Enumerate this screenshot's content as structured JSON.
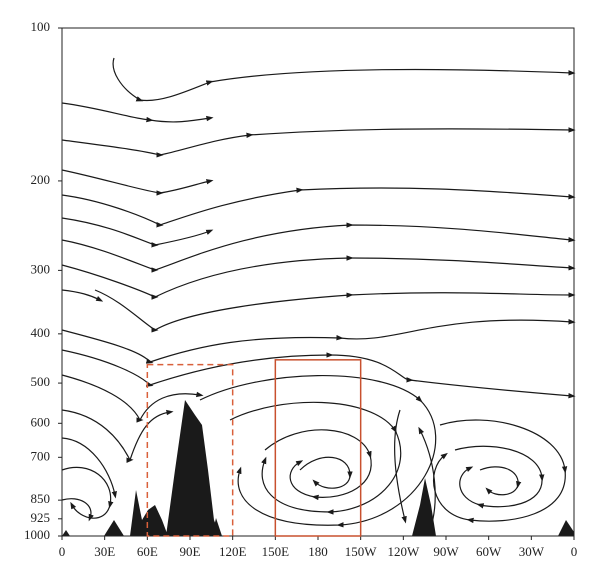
{
  "chart_data": {
    "type": "streamline",
    "xlim": [
      0,
      360
    ],
    "xticks": [
      0,
      {
        "value": 30,
        "label": "30E"
      },
      {
        "value": 60,
        "label": "60E"
      },
      {
        "value": 90,
        "label": "90E"
      },
      {
        "value": 120,
        "label": "120E"
      },
      {
        "value": 150,
        "label": "150E"
      },
      180,
      {
        "value": 210,
        "label": "150W"
      },
      {
        "value": 240,
        "label": "120W"
      },
      {
        "value": 270,
        "label": "90W"
      },
      {
        "value": 300,
        "label": "60W"
      },
      {
        "value": 330,
        "label": "30W"
      },
      {
        "value": 360,
        "label": "0"
      }
    ],
    "ylim": [
      1000,
      100
    ],
    "y_log": true,
    "yticks": [
      100,
      200,
      300,
      400,
      500,
      600,
      700,
      850,
      925,
      1000
    ],
    "boxes": [
      {
        "lon": [
          60,
          120
        ],
        "p": [
          1000,
          460
        ],
        "color": "#d9603b",
        "style": "dashed"
      },
      {
        "lon": [
          150,
          210
        ],
        "p": [
          1000,
          450
        ],
        "color": "#c8502e",
        "style": "solid"
      }
    ]
  }
}
